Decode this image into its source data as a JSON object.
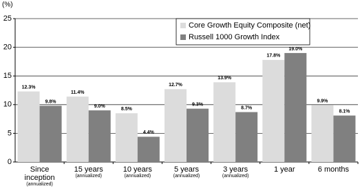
{
  "chart_data": {
    "type": "bar",
    "y_label": "(%)",
    "categories": [
      "Since inception",
      "15 years",
      "10 years",
      "5 years",
      "3 years",
      "1 year",
      "6 months"
    ],
    "category_notes": [
      "(annualized)",
      "(annualized)",
      "(annualized)",
      "(annualized)",
      "(annualized)",
      null,
      null
    ],
    "series": [
      {
        "name": "Core Growth Equity Composite (net)",
        "color": "#dcdcdc",
        "values": [
          12.3,
          11.4,
          8.5,
          12.7,
          13.9,
          17.8,
          9.9
        ],
        "value_labels": [
          "12.3%",
          "11.4%",
          "8.5%",
          "12.7%",
          "13.9%",
          "17.8%",
          "9.9%"
        ]
      },
      {
        "name": "Russell 1000 Growth Index",
        "color": "#808080",
        "values": [
          9.8,
          9.0,
          4.4,
          9.3,
          8.7,
          19.0,
          8.1
        ],
        "value_labels": [
          "9.8%",
          "9.0%",
          "4.4%",
          "9.3%",
          "8.7%",
          "19.0%",
          "8.1%"
        ]
      }
    ],
    "ylim": [
      0,
      25
    ],
    "yticks": [
      0,
      5,
      10,
      15,
      20,
      25
    ],
    "grid": true,
    "legend": "top-right"
  }
}
